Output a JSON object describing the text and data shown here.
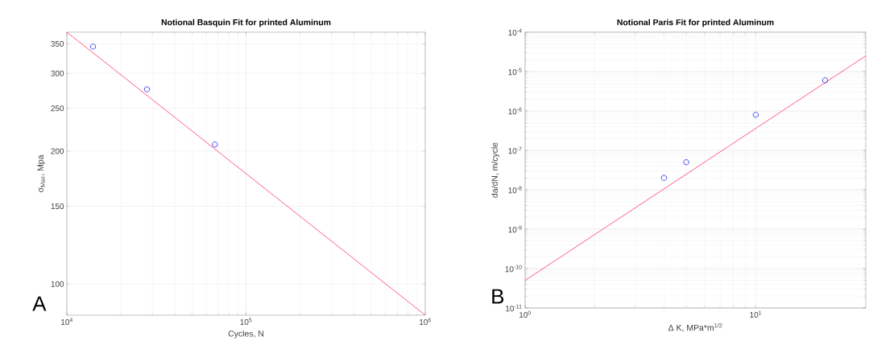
{
  "chart_data": [
    {
      "type": "scatter",
      "title": "Notional Basquin Fit for printed Aluminum",
      "xlabel": "Cycles, N",
      "ylabel": "σ$_{Max}$, Mpa",
      "annotations": [
        "A"
      ],
      "log": "xy",
      "grid": true,
      "xlim": [
        10000,
        1000000
      ],
      "ylim": [
        85,
        372
      ],
      "xticks": [
        {
          "value": 10000,
          "label": "10$^{4}$"
        },
        {
          "value": 100000,
          "label": "10$^{5}$"
        },
        {
          "value": 1000000,
          "label": "10$^{6}$"
        }
      ],
      "yticks": [
        100,
        150,
        200,
        250,
        300,
        350
      ],
      "series": [
        {
          "marker": "circle",
          "color": "#3333ff",
          "x": [
            14000,
            28000,
            67000
          ],
          "values": [
            345,
            276,
            207
          ]
        },
        {
          "type": "line",
          "marker": "none",
          "color": "#ff3366",
          "x": [
            10000,
            1000000
          ],
          "values": [
            372,
            85
          ]
        }
      ]
    },
    {
      "type": "scatter",
      "title": "Notional Paris Fit for printed Aluminum",
      "xlabel": "Δ K, MPa*m$^{1/2}$",
      "ylabel": "da/dN, m/cycle",
      "annotations": [
        "B"
      ],
      "log": "xy",
      "grid": true,
      "xlim": [
        1,
        30
      ],
      "ylim": [
        1e-11,
        0.0001
      ],
      "xticks": [
        {
          "value": 1,
          "label": "10$^{0}$"
        },
        {
          "value": 10,
          "label": "10$^{1}$"
        }
      ],
      "yticks": [
        {
          "value": 1e-11,
          "label": "10$^{-11}$"
        },
        {
          "value": 1e-10,
          "label": "10$^{-10}$"
        },
        {
          "value": 1e-09,
          "label": "10$^{-9}$"
        },
        {
          "value": 1e-08,
          "label": "10$^{-8}$"
        },
        {
          "value": 1e-07,
          "label": "10$^{-7}$"
        },
        {
          "value": 1e-06,
          "label": "10$^{-6}$"
        },
        {
          "value": 1e-05,
          "label": "10$^{-5}$"
        },
        {
          "value": 0.0001,
          "label": "10$^{-4}$"
        }
      ],
      "series": [
        {
          "marker": "circle",
          "color": "#3333ff",
          "x": [
            4,
            5,
            10,
            20
          ],
          "values": [
            2e-08,
            5e-08,
            8e-07,
            6e-06
          ]
        },
        {
          "type": "line",
          "marker": "none",
          "color": "#ff3366",
          "x": [
            1,
            30
          ],
          "values": [
            5e-11,
            2.5e-05
          ]
        }
      ]
    }
  ]
}
